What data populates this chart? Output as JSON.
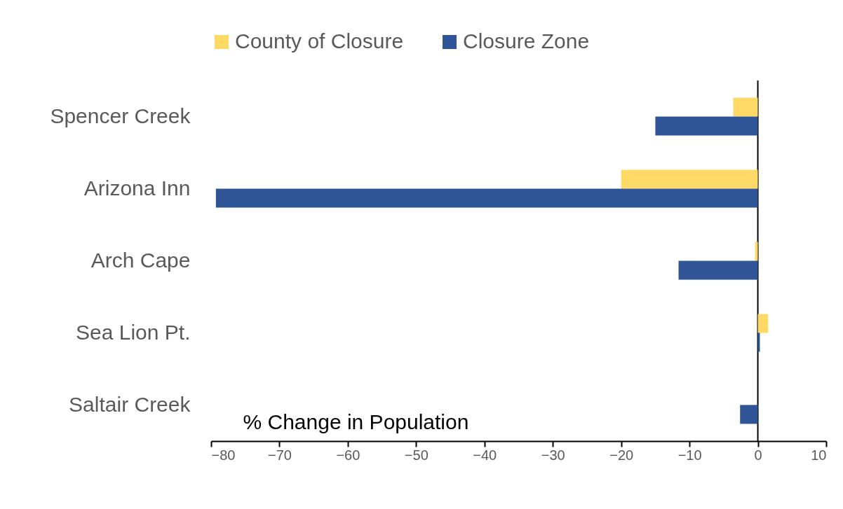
{
  "chart_data": {
    "type": "bar",
    "orientation": "horizontal",
    "categories": [
      "Spencer Creek",
      "Arizona Inn",
      "Arch Cape",
      "Sea Lion Pt.",
      "Saltair Creek"
    ],
    "series": [
      {
        "name": "County of Closure",
        "color": "#ffd966",
        "values": [
          -3.6,
          -20.0,
          -0.4,
          1.5,
          null
        ]
      },
      {
        "name": "Closure Zone",
        "color": "#2f5597",
        "values": [
          -15.0,
          -79.3,
          -11.6,
          0.3,
          -2.6
        ]
      }
    ],
    "xlabel": "% Change in Population",
    "xlim": [
      -80,
      10
    ],
    "xticks": [
      -80,
      -70,
      -60,
      -50,
      -40,
      -30,
      -20,
      -10,
      0,
      10
    ],
    "grid": false,
    "ref_lines": [
      {
        "axis": "x",
        "value": 0,
        "color": "#000000"
      }
    ],
    "legend": "top"
  }
}
